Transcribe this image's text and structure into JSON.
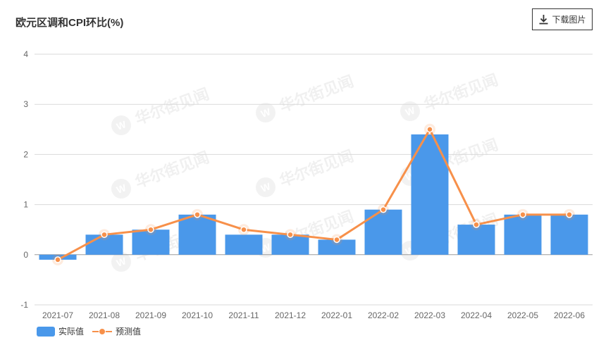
{
  "download_button": {
    "label": "下载图片",
    "icon": "download-icon"
  },
  "watermark": "华尔街见闻",
  "colors": {
    "actual": "#4a98ea",
    "forecast": "#f7904a",
    "grid": "#d9d9d9",
    "zero_line": "#9a9a9a",
    "tick_text": "#666666"
  },
  "chart_data": {
    "type": "bar",
    "title": "欧元区调和CPI环比(%)",
    "xlabel": "",
    "ylabel": "",
    "categories": [
      "2021-07",
      "2021-08",
      "2021-09",
      "2021-10",
      "2021-11",
      "2021-12",
      "2022-01",
      "2022-02",
      "2022-03",
      "2022-04",
      "2022-05",
      "2022-06"
    ],
    "ylim": [
      -1,
      4
    ],
    "yticks": [
      -1,
      0,
      1,
      2,
      3,
      4
    ],
    "grid": true,
    "legend_position": "bottom-left",
    "series": [
      {
        "name": "实际值",
        "type": "bar",
        "values": [
          -0.1,
          0.4,
          0.5,
          0.8,
          0.4,
          0.4,
          0.3,
          0.9,
          2.4,
          0.6,
          0.8,
          0.8
        ]
      },
      {
        "name": "预测值",
        "type": "line",
        "values": [
          -0.1,
          0.4,
          0.5,
          0.8,
          0.5,
          0.4,
          0.3,
          0.9,
          2.5,
          0.6,
          0.8,
          0.8
        ]
      }
    ]
  }
}
